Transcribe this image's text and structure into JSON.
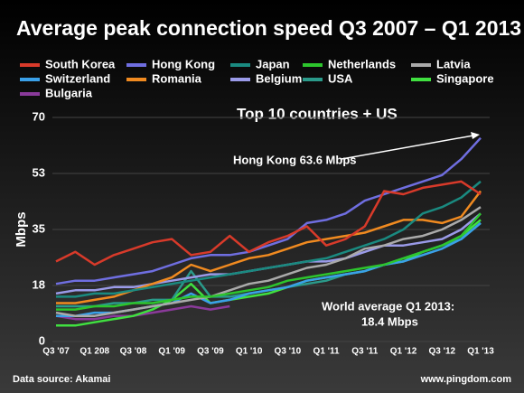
{
  "chart_data": {
    "type": "line",
    "title": "Average peak connection speed Q3 2007 – Q1 2013",
    "subtitle": "Top 10 countries + US",
    "y_label": "Mbps",
    "annotations": [
      "Hong Kong 63.6 Mbps",
      "World average Q1 2013:",
      "18.4 Mbps"
    ],
    "source": "Data source: Akamai",
    "credit": "www.pingdom.com",
    "categories": [
      "Q3 '07",
      null,
      "Q1 208",
      null,
      "Q3 '08",
      null,
      "Q1 '09",
      null,
      "Q3 '09",
      null,
      "Q1 '10",
      null,
      "Q3 '10",
      null,
      "Q1 '11",
      null,
      "Q3 '11",
      null,
      "Q1 '12",
      null,
      "Q3 '12",
      null,
      "Q1 '13"
    ],
    "ylim": [
      0,
      70
    ],
    "yticks": [
      0,
      {
        "value": 17.5,
        "label": "18"
      },
      35,
      {
        "value": 52.5,
        "label": "53"
      },
      70
    ],
    "grid": true,
    "series": [
      {
        "name": "South Korea",
        "color": "#d83a2a",
        "values": [
          25,
          28,
          24,
          27,
          29,
          31,
          32,
          27,
          28,
          33,
          28,
          31,
          33,
          36,
          30,
          32,
          36,
          47,
          46,
          48,
          49,
          50,
          46
        ]
      },
      {
        "name": "Hong Kong",
        "color": "#6f6ee0",
        "values": [
          18,
          19,
          19,
          20,
          21,
          22,
          24,
          26,
          27,
          27,
          28,
          30,
          32,
          37,
          38,
          40,
          44,
          46,
          48,
          50,
          52,
          57,
          63.6
        ]
      },
      {
        "name": "Japan",
        "color": "#1a8a80",
        "values": [
          14,
          14,
          15,
          15,
          16,
          17,
          18,
          19,
          20,
          21,
          22,
          23,
          24,
          25,
          26,
          28,
          30,
          32,
          35,
          40,
          42,
          45,
          50
        ]
      },
      {
        "name": "Netherlands",
        "color": "#2dc52d",
        "values": [
          10,
          10,
          11,
          11,
          12,
          12,
          13,
          14,
          14,
          15,
          16,
          17,
          19,
          20,
          21,
          22,
          23,
          24,
          26,
          28,
          30,
          33,
          40
        ]
      },
      {
        "name": "Latvia",
        "color": "#aaaaaa",
        "values": [
          9,
          8,
          8,
          9,
          10,
          11,
          12,
          13,
          14,
          16,
          18,
          19,
          21,
          23,
          24,
          26,
          29,
          30,
          32,
          33,
          35,
          38,
          42
        ]
      },
      {
        "name": "Switzerland",
        "color": "#3aa0e8",
        "values": [
          8,
          8,
          9,
          9,
          10,
          11,
          12,
          15,
          12,
          13,
          15,
          16,
          17,
          19,
          20,
          21,
          22,
          24,
          25,
          27,
          29,
          32,
          37
        ]
      },
      {
        "name": "Romania",
        "color": "#f08a20",
        "values": [
          12,
          12,
          13,
          14,
          16,
          18,
          20,
          24,
          22,
          24,
          26,
          27,
          29,
          31,
          32,
          33,
          34,
          36,
          38,
          38,
          37,
          39,
          47
        ]
      },
      {
        "name": "Belgium",
        "color": "#9a9ae8",
        "values": [
          15,
          16,
          16,
          17,
          17,
          18,
          19,
          20,
          21,
          21,
          22,
          23,
          24,
          25,
          25,
          26,
          28,
          30,
          30,
          31,
          32,
          35,
          40
        ]
      },
      {
        "name": "USA",
        "color": "#2a9a8a",
        "values": [
          11,
          11,
          11,
          12,
          12,
          13,
          13,
          22,
          14,
          14,
          15,
          16,
          17,
          18,
          19,
          21,
          22,
          24,
          26,
          28,
          30,
          32,
          37
        ]
      },
      {
        "name": "Singapore",
        "color": "#40e040",
        "values": [
          5,
          5,
          6,
          7,
          8,
          10,
          13,
          18,
          12,
          13,
          14,
          15,
          17,
          19,
          20,
          21,
          22,
          24,
          25,
          28,
          30,
          33,
          38
        ]
      },
      {
        "name": "Bulgaria",
        "color": "#8a3a9a",
        "values": [
          8,
          7,
          7,
          8,
          8,
          9,
          10,
          11,
          10,
          11,
          null,
          null,
          null,
          null,
          null,
          null,
          null,
          null,
          null,
          null,
          null,
          null,
          null
        ]
      }
    ]
  }
}
